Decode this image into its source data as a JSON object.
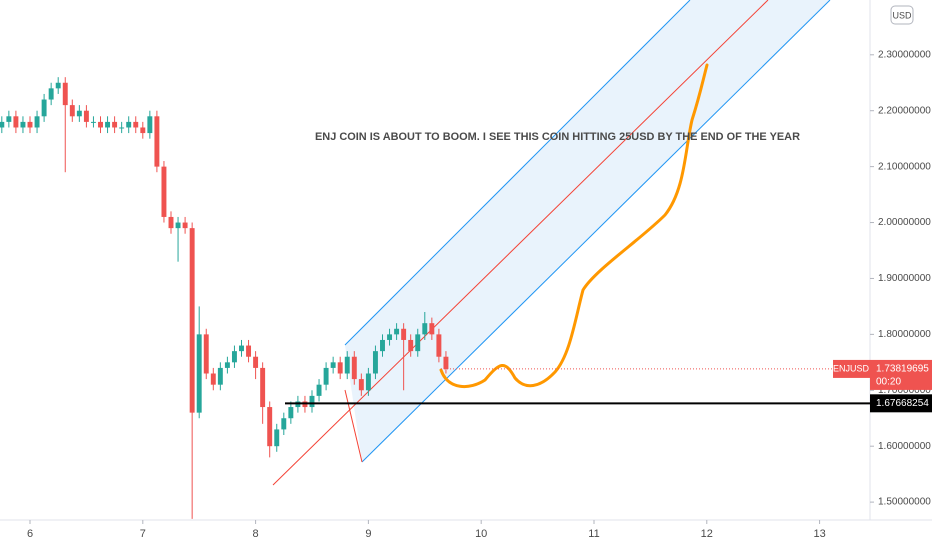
{
  "chart_data": {
    "type": "candlestick",
    "annotation": "ENJ COIN IS ABOUT TO BOOM. I SEE THIS COIN HITTING 25USD BY THE END OF THE YEAR",
    "symbol": "ENJUSD",
    "currency": "USD",
    "last_price": 1.73819695,
    "countdown": "00:20",
    "level": 1.67668254,
    "up_color": "#26a69a",
    "down_color": "#ef5350",
    "xlim": [
      5.734,
      13.447
    ],
    "xticks": [
      6,
      7,
      8,
      9,
      10,
      11,
      12,
      13
    ],
    "ylim": [
      1.468,
      2.398
    ],
    "yticks": [
      {
        "value": 1.5,
        "label": "1.50000000"
      },
      {
        "value": 1.6,
        "label": "1.60000000"
      },
      {
        "value": 1.7,
        "label": "1.70000000"
      },
      {
        "value": 1.8,
        "label": "1.80000000"
      },
      {
        "value": 1.9,
        "label": "1.90000000"
      },
      {
        "value": 2.0,
        "label": "2.00000000"
      },
      {
        "value": 2.1,
        "label": "2.10000000"
      },
      {
        "value": 2.2,
        "label": "2.20000000"
      },
      {
        "value": 2.3,
        "label": "2.30000000"
      }
    ],
    "grid": false,
    "x": [
      5.75,
      5.8125,
      5.875,
      5.9375,
      6,
      6.0625,
      6.125,
      6.1875,
      6.25,
      6.3125,
      6.375,
      6.4375,
      6.5,
      6.5625,
      6.625,
      6.6875,
      6.75,
      6.8125,
      6.875,
      6.9375,
      7,
      7.0625,
      7.125,
      7.1875,
      7.25,
      7.3125,
      7.375,
      7.4375,
      7.5,
      7.5625,
      7.625,
      7.6875,
      7.75,
      7.8125,
      7.875,
      7.9375,
      8,
      8.0625,
      8.125,
      8.1875,
      8.25,
      8.3125,
      8.375,
      8.4375,
      8.5,
      8.5625,
      8.625,
      8.6875,
      8.75,
      8.8125,
      8.875,
      8.9375,
      9,
      9.0625,
      9.125,
      9.1875,
      9.25,
      9.3125,
      9.375,
      9.4375,
      9.5,
      9.5625,
      9.625,
      9.6875
    ],
    "open": [
      2.17,
      2.18,
      2.19,
      2.17,
      2.18,
      2.17,
      2.19,
      2.22,
      2.24,
      2.25,
      2.21,
      2.19,
      2.2,
      2.18,
      2.18,
      2.17,
      2.18,
      2.17,
      2.17,
      2.18,
      2.17,
      2.16,
      2.19,
      2.1,
      2.01,
      1.99,
      2.0,
      1.99,
      1.66,
      1.8,
      1.73,
      1.71,
      1.74,
      1.75,
      1.77,
      1.78,
      1.76,
      1.74,
      1.67,
      1.6,
      1.63,
      1.65,
      1.67,
      1.68,
      1.67,
      1.69,
      1.71,
      1.74,
      1.75,
      1.73,
      1.76,
      1.72,
      1.7,
      1.73,
      1.77,
      1.79,
      1.8,
      1.81,
      1.79,
      1.77,
      1.8,
      1.82,
      1.8,
      1.76
    ],
    "high": [
      2.19,
      2.2,
      2.2,
      2.19,
      2.19,
      2.2,
      2.23,
      2.25,
      2.26,
      2.26,
      2.22,
      2.21,
      2.21,
      2.19,
      2.19,
      2.19,
      2.19,
      2.18,
      2.19,
      2.19,
      2.18,
      2.2,
      2.2,
      2.11,
      2.02,
      2.01,
      2.01,
      2.0,
      1.85,
      1.81,
      1.74,
      1.75,
      1.76,
      1.78,
      1.79,
      1.79,
      1.77,
      1.75,
      1.68,
      1.64,
      1.66,
      1.68,
      1.69,
      1.69,
      1.7,
      1.72,
      1.75,
      1.76,
      1.76,
      1.77,
      1.77,
      1.73,
      1.74,
      1.78,
      1.8,
      1.81,
      1.82,
      1.82,
      1.8,
      1.81,
      1.84,
      1.83,
      1.81,
      1.77
    ],
    "low": [
      2.16,
      2.17,
      2.16,
      2.16,
      2.16,
      2.16,
      2.18,
      2.21,
      2.23,
      2.09,
      2.18,
      2.18,
      2.17,
      2.17,
      2.16,
      2.16,
      2.16,
      2.16,
      2.16,
      2.16,
      2.15,
      2.15,
      2.09,
      2.0,
      1.98,
      1.93,
      1.98,
      1.47,
      1.65,
      1.72,
      1.7,
      1.7,
      1.73,
      1.74,
      1.76,
      1.75,
      1.72,
      1.64,
      1.58,
      1.59,
      1.62,
      1.64,
      1.66,
      1.66,
      1.66,
      1.68,
      1.7,
      1.73,
      1.72,
      1.72,
      1.71,
      1.69,
      1.69,
      1.72,
      1.76,
      1.78,
      1.79,
      1.7,
      1.76,
      1.76,
      1.79,
      1.79,
      1.75,
      1.73
    ],
    "close": [
      2.18,
      2.19,
      2.17,
      2.18,
      2.17,
      2.19,
      2.22,
      2.24,
      2.25,
      2.21,
      2.19,
      2.2,
      2.18,
      2.18,
      2.17,
      2.18,
      2.17,
      2.17,
      2.18,
      2.17,
      2.16,
      2.19,
      2.1,
      2.01,
      1.99,
      2.0,
      1.99,
      1.66,
      1.8,
      1.73,
      1.71,
      1.74,
      1.75,
      1.77,
      1.78,
      1.76,
      1.74,
      1.67,
      1.6,
      1.63,
      1.65,
      1.67,
      1.68,
      1.67,
      1.69,
      1.71,
      1.74,
      1.75,
      1.73,
      1.76,
      1.72,
      1.7,
      1.73,
      1.77,
      1.79,
      1.8,
      1.81,
      1.79,
      1.77,
      1.8,
      1.82,
      1.8,
      1.76,
      1.738
    ]
  }
}
